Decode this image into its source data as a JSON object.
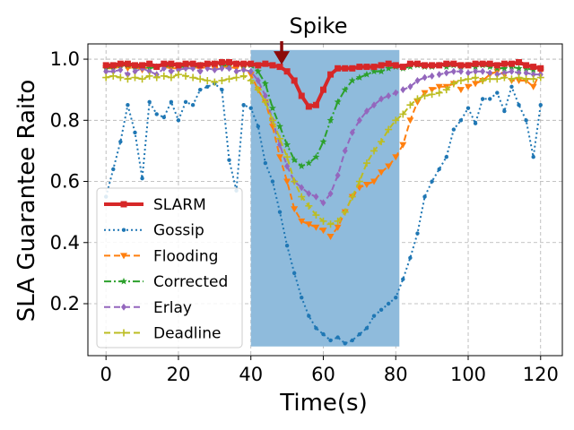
{
  "chart_data": {
    "type": "line",
    "title": "",
    "xlabel": "Time(s)",
    "ylabel": "SLA Guarantee Raito",
    "xlim": [
      -5,
      126
    ],
    "ylim": [
      0.03,
      1.05
    ],
    "xticks": [
      0,
      20,
      40,
      60,
      80,
      100,
      120
    ],
    "yticks": [
      0.2,
      0.4,
      0.6,
      0.8,
      1.0
    ],
    "xtick_labels": [
      "0",
      "20",
      "40",
      "60",
      "80",
      "100",
      "120"
    ],
    "ytick_labels": [
      "0.2",
      "0.4",
      "0.6",
      "0.8",
      "1.0"
    ],
    "grid": true,
    "legend_position": "lower-left",
    "highlight_region": {
      "x_start": 40,
      "x_end": 81,
      "y_start": 0.06,
      "y_end": 1.03,
      "color": "#8fbbdc"
    },
    "annotation": {
      "text": "Spike",
      "x": 48.5,
      "y": 0.985,
      "arrow_color": "#8b0a0a"
    },
    "x": [
      0,
      2,
      4,
      6,
      8,
      10,
      12,
      14,
      16,
      18,
      20,
      22,
      24,
      26,
      28,
      30,
      32,
      34,
      36,
      38,
      40,
      42,
      44,
      46,
      48,
      50,
      52,
      54,
      56,
      58,
      60,
      62,
      64,
      66,
      68,
      70,
      72,
      74,
      76,
      78,
      80,
      82,
      84,
      86,
      88,
      90,
      92,
      94,
      96,
      98,
      100,
      102,
      104,
      106,
      108,
      110,
      112,
      114,
      116,
      118,
      120
    ],
    "series": [
      {
        "name": "SLARM",
        "color": "#d62728",
        "style": "solid",
        "marker": "square",
        "width": 4,
        "values": [
          0.98,
          0.98,
          0.985,
          0.985,
          0.98,
          0.98,
          0.985,
          0.975,
          0.985,
          0.985,
          0.98,
          0.985,
          0.985,
          0.98,
          0.985,
          0.985,
          0.99,
          0.99,
          0.985,
          0.985,
          0.985,
          0.98,
          0.985,
          0.98,
          0.975,
          0.96,
          0.93,
          0.88,
          0.845,
          0.85,
          0.9,
          0.95,
          0.97,
          0.97,
          0.97,
          0.975,
          0.975,
          0.975,
          0.98,
          0.985,
          0.98,
          0.975,
          0.985,
          0.985,
          0.98,
          0.98,
          0.98,
          0.985,
          0.985,
          0.98,
          0.98,
          0.985,
          0.985,
          0.985,
          0.98,
          0.985,
          0.985,
          0.99,
          0.98,
          0.975,
          0.97
        ]
      },
      {
        "name": "Gossip",
        "color": "#1f77b4",
        "style": "dotted",
        "marker": "dot",
        "width": 2,
        "values": [
          0.55,
          0.64,
          0.73,
          0.85,
          0.76,
          0.61,
          0.86,
          0.82,
          0.81,
          0.86,
          0.8,
          0.86,
          0.85,
          0.9,
          0.91,
          0.92,
          0.9,
          0.67,
          0.57,
          0.85,
          0.84,
          0.78,
          0.66,
          0.6,
          0.5,
          0.39,
          0.3,
          0.22,
          0.16,
          0.12,
          0.1,
          0.08,
          0.09,
          0.07,
          0.08,
          0.1,
          0.12,
          0.16,
          0.18,
          0.2,
          0.22,
          0.28,
          0.35,
          0.43,
          0.55,
          0.6,
          0.64,
          0.68,
          0.77,
          0.8,
          0.84,
          0.79,
          0.87,
          0.87,
          0.89,
          0.83,
          0.91,
          0.85,
          0.8,
          0.68,
          0.85
        ]
      },
      {
        "name": "Flooding",
        "color": "#ff7f0e",
        "style": "dashed",
        "marker": "triangle-down",
        "width": 2,
        "values": [
          0.97,
          0.97,
          0.975,
          0.97,
          0.975,
          0.965,
          0.975,
          0.975,
          0.975,
          0.97,
          0.97,
          0.97,
          0.975,
          0.97,
          0.975,
          0.97,
          0.975,
          0.975,
          0.97,
          0.97,
          0.95,
          0.9,
          0.86,
          0.78,
          0.68,
          0.6,
          0.51,
          0.47,
          0.46,
          0.45,
          0.44,
          0.42,
          0.45,
          0.5,
          0.55,
          0.58,
          0.59,
          0.6,
          0.63,
          0.65,
          0.68,
          0.72,
          0.8,
          0.86,
          0.89,
          0.9,
          0.91,
          0.91,
          0.92,
          0.9,
          0.91,
          0.92,
          0.93,
          0.95,
          0.96,
          0.95,
          0.93,
          0.93,
          0.93,
          0.91,
          0.96
        ]
      },
      {
        "name": "Corrected",
        "color": "#2ca02c",
        "style": "dashdot",
        "marker": "star",
        "width": 2,
        "values": [
          0.97,
          0.975,
          0.98,
          0.98,
          0.975,
          0.975,
          0.97,
          0.975,
          0.975,
          0.98,
          0.975,
          0.975,
          0.975,
          0.98,
          0.98,
          0.985,
          0.98,
          0.98,
          0.985,
          0.98,
          0.98,
          0.96,
          0.92,
          0.84,
          0.78,
          0.72,
          0.67,
          0.65,
          0.66,
          0.68,
          0.73,
          0.8,
          0.86,
          0.9,
          0.93,
          0.94,
          0.95,
          0.96,
          0.96,
          0.97,
          0.975,
          0.97,
          0.975,
          0.98,
          0.975,
          0.975,
          0.98,
          0.975,
          0.98,
          0.975,
          0.98,
          0.975,
          0.98,
          0.975,
          0.97,
          0.97,
          0.975,
          0.97,
          0.97,
          0.965,
          0.97
        ]
      },
      {
        "name": "Erlay",
        "color": "#9467bd",
        "style": "dashed",
        "marker": "diamond",
        "width": 2,
        "values": [
          0.96,
          0.96,
          0.965,
          0.95,
          0.96,
          0.97,
          0.96,
          0.95,
          0.97,
          0.96,
          0.965,
          0.97,
          0.97,
          0.96,
          0.97,
          0.965,
          0.97,
          0.97,
          0.96,
          0.965,
          0.96,
          0.93,
          0.88,
          0.8,
          0.72,
          0.65,
          0.6,
          0.58,
          0.56,
          0.55,
          0.53,
          0.56,
          0.62,
          0.7,
          0.76,
          0.8,
          0.83,
          0.85,
          0.87,
          0.88,
          0.89,
          0.9,
          0.91,
          0.93,
          0.94,
          0.945,
          0.95,
          0.955,
          0.96,
          0.96,
          0.955,
          0.96,
          0.96,
          0.955,
          0.95,
          0.955,
          0.96,
          0.955,
          0.955,
          0.95,
          0.95
        ]
      },
      {
        "name": "Deadline",
        "color": "#bcbd22",
        "style": "dashed",
        "marker": "plus",
        "width": 2,
        "values": [
          0.94,
          0.945,
          0.94,
          0.935,
          0.94,
          0.935,
          0.945,
          0.94,
          0.945,
          0.94,
          0.95,
          0.945,
          0.94,
          0.935,
          0.93,
          0.925,
          0.93,
          0.935,
          0.94,
          0.945,
          0.93,
          0.9,
          0.86,
          0.8,
          0.74,
          0.68,
          0.6,
          0.55,
          0.52,
          0.49,
          0.47,
          0.46,
          0.47,
          0.5,
          0.55,
          0.6,
          0.66,
          0.7,
          0.73,
          0.77,
          0.8,
          0.82,
          0.85,
          0.87,
          0.88,
          0.885,
          0.89,
          0.9,
          0.92,
          0.93,
          0.935,
          0.94,
          0.93,
          0.935,
          0.935,
          0.94,
          0.935,
          0.94,
          0.935,
          0.935,
          0.94
        ]
      }
    ]
  }
}
